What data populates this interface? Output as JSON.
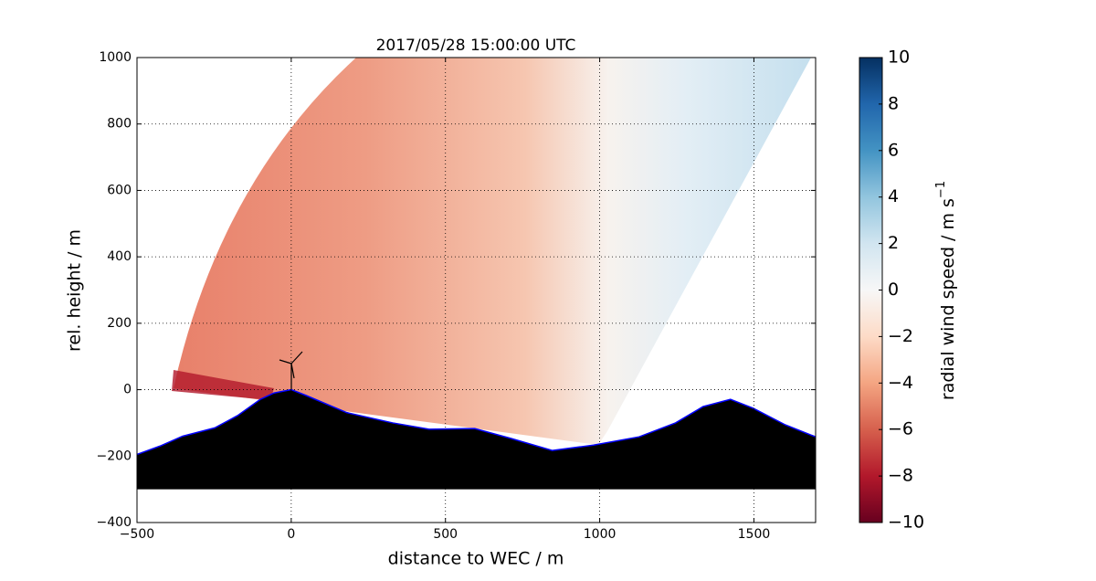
{
  "chart_data": {
    "type": "area",
    "title": "2017/05/28 15:00:00 UTC",
    "x_label": "distance to WEC / m",
    "y_label": "rel. height / m",
    "xlim": [
      -500,
      1700
    ],
    "xticks": [
      {
        "value": -500,
        "label": "−500"
      },
      0,
      500,
      1000,
      1500
    ],
    "ylim": [
      -400,
      1000
    ],
    "yticks": [
      {
        "value": -400,
        "label": "−400"
      },
      {
        "value": -200,
        "label": "−200"
      },
      0,
      200,
      400,
      600,
      800,
      1000
    ],
    "grid": true,
    "series": [
      {
        "color": "#000000",
        "edge_color": "#0000ff",
        "base": -300,
        "x": [
          -500,
          -426,
          -352,
          -248,
          -174,
          -100,
          -56,
          0,
          47,
          180,
          329,
          447,
          595,
          713,
          846,
          980,
          1128,
          1246,
          1335,
          1424,
          1498,
          1602,
          1700
        ],
        "values": [
          -195,
          -170,
          -140,
          -115,
          -78,
          -29,
          -10,
          0,
          -17,
          -69,
          -100,
          -119,
          -117,
          -147,
          -183,
          -167,
          -142,
          -100,
          -51,
          -29,
          -56,
          -106,
          -142
        ]
      }
    ],
    "colorbar": {
      "label": "radial wind speed / m s",
      "label_exponent": "−1",
      "lim": [
        -10,
        10
      ],
      "ticks": [
        {
          "value": -10,
          "label": "−10"
        },
        {
          "value": -8,
          "label": "−8"
        },
        {
          "value": -6,
          "label": "−6"
        },
        {
          "value": -4,
          "label": "−4"
        },
        {
          "value": -2,
          "label": "−2"
        },
        0,
        2,
        4,
        6,
        8,
        10
      ]
    }
  }
}
